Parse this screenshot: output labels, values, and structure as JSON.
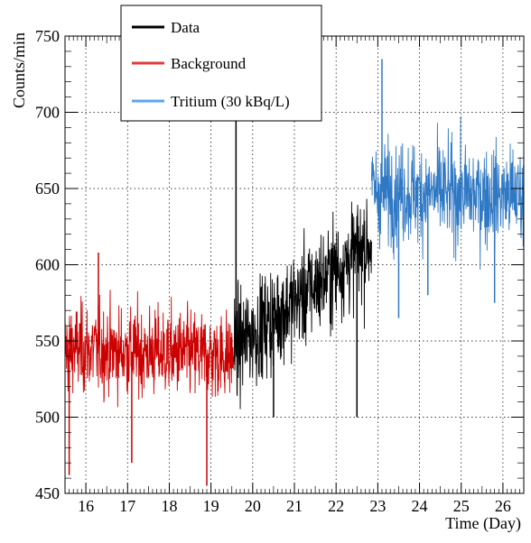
{
  "chart_data": {
    "type": "line",
    "title": "",
    "xlabel": "Time (Day)",
    "ylabel": "Counts/min",
    "xlim": [
      15.5,
      26.5
    ],
    "ylim": [
      450,
      750
    ],
    "xticks": [
      16,
      17,
      18,
      19,
      20,
      21,
      22,
      23,
      24,
      25,
      26
    ],
    "yticks": [
      450,
      500,
      550,
      600,
      650,
      700,
      750
    ],
    "grid": true,
    "legend_position": "top-left",
    "series": [
      {
        "name": "Data",
        "color": "#000000",
        "x_range": [
          19.55,
          22.85
        ],
        "mean_start": 545,
        "mean_end": 615,
        "spread": 28,
        "spikes": [
          {
            "x": 19.6,
            "y": 700
          },
          {
            "x": 19.62,
            "y": 545
          },
          {
            "x": 22.5,
            "y": 500
          },
          {
            "x": 20.5,
            "y": 500
          }
        ]
      },
      {
        "name": "Background",
        "color": "#cc0000",
        "x_range": [
          15.5,
          19.55
        ],
        "mean_start": 545,
        "mean_end": 540,
        "spread": 24,
        "spikes": [
          {
            "x": 15.6,
            "y": 462
          },
          {
            "x": 17.1,
            "y": 470
          },
          {
            "x": 18.9,
            "y": 455
          },
          {
            "x": 16.3,
            "y": 608
          }
        ]
      },
      {
        "name": "Tritium (30 kBq/L)",
        "color": "#2f78c4",
        "x_range": [
          22.85,
          26.5
        ],
        "mean_start": 648,
        "mean_end": 645,
        "spread": 27,
        "spikes": [
          {
            "x": 23.1,
            "y": 735
          },
          {
            "x": 23.5,
            "y": 565
          },
          {
            "x": 25.8,
            "y": 575
          },
          {
            "x": 24.2,
            "y": 580
          }
        ]
      }
    ]
  }
}
